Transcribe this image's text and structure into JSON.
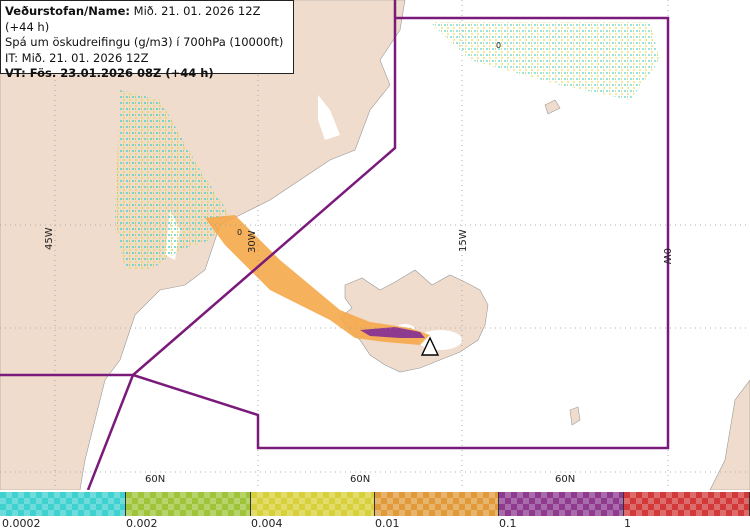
{
  "info": {
    "line1_bold": "Veðurstofan/Name:",
    "line1_rest": " Mið. 21. 01. 2026 12Z (+44 h)",
    "line2": "Spá um öskudreifingu (g/m3) í 700hPa (10000ft)",
    "line3": "IT: Mið. 21. 01. 2026 12Z",
    "line4": "VT: Fös. 23.01.2026 08Z (+44 h)"
  },
  "gridlabels": {
    "lon45": "45W",
    "lon30": "30W",
    "lon15": "15W",
    "lon0": "0W",
    "lat60a": "60N",
    "lat60b": "60N",
    "lat60c": "60N",
    "zero_a": "0",
    "zero_b": "0"
  },
  "legend": {
    "ticks": [
      "0.0002",
      "0.002",
      "0.004",
      "0.01",
      "0.1",
      "1"
    ],
    "colors": [
      "#3fd0d0",
      "#9fc43a",
      "#d8d03a",
      "#e09a3a",
      "#8e3a8e",
      "#d23a3a"
    ]
  },
  "colors": {
    "land": "#f0dccd",
    "sea": "#ffffff",
    "border": "#7a1a7a",
    "plume": "#f5a94a"
  }
}
